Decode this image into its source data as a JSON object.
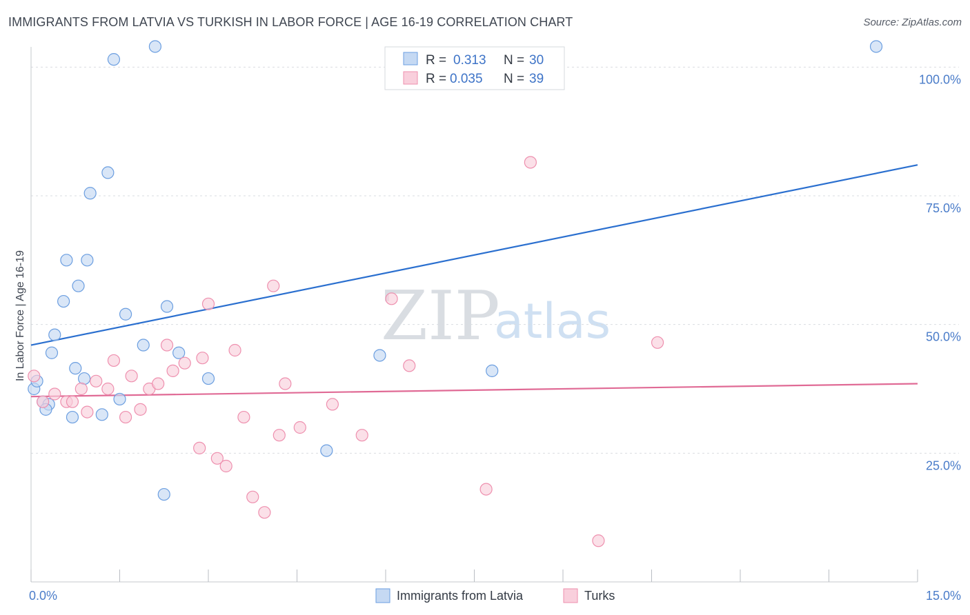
{
  "header": {
    "title": "IMMIGRANTS FROM LATVIA VS TURKISH IN LABOR FORCE | AGE 16-19 CORRELATION CHART",
    "source": "Source: ZipAtlas.com"
  },
  "watermark": {
    "zip": "ZIP",
    "atlas": "atlas"
  },
  "legend": {
    "rows": [
      {
        "r_label": "R = ",
        "r_value": "0.313",
        "n_label": "N = ",
        "n_value": "30"
      },
      {
        "r_label": "R = ",
        "r_value": "0.035",
        "n_label": "N = ",
        "n_value": "39"
      }
    ]
  },
  "chart_data": {
    "type": "scatter",
    "ylabel": "In Labor Force | Age 16-19",
    "xlim": [
      0,
      15
    ],
    "ylim": [
      0,
      105
    ],
    "x_ticks": [
      0,
      1.5,
      3,
      4.5,
      6,
      7.5,
      9,
      10.5,
      12,
      13.5,
      15
    ],
    "x_tick_labels": [
      {
        "value": 0,
        "label": "0.0%"
      },
      {
        "value": 15,
        "label": "15.0%"
      }
    ],
    "y_tick_labels": [
      {
        "value": 100,
        "label": "100.0%"
      },
      {
        "value": 75,
        "label": "75.0%"
      },
      {
        "value": 50,
        "label": "50.0%"
      },
      {
        "value": 25,
        "label": "25.0%"
      }
    ],
    "grid": true,
    "legend_position": "top-center",
    "series": [
      {
        "name": "Immigrants from Latvia",
        "color": "#6b9ee0",
        "fill": "#c5d9f3",
        "line_color": "#2a6fcf",
        "trend": {
          "x": [
            0,
            15
          ],
          "y": [
            46,
            81
          ]
        },
        "points": [
          [
            0.05,
            37.5
          ],
          [
            0.1,
            39
          ],
          [
            0.2,
            35
          ],
          [
            0.3,
            34.5
          ],
          [
            0.25,
            33.5
          ],
          [
            0.35,
            44.5
          ],
          [
            0.4,
            48
          ],
          [
            0.55,
            54.5
          ],
          [
            0.6,
            62.5
          ],
          [
            0.7,
            32
          ],
          [
            0.75,
            41.5
          ],
          [
            0.8,
            57.5
          ],
          [
            0.9,
            39.5
          ],
          [
            0.95,
            62.5
          ],
          [
            1.0,
            75.5
          ],
          [
            1.2,
            32.5
          ],
          [
            1.3,
            79.5
          ],
          [
            1.4,
            101.5
          ],
          [
            1.5,
            35.5
          ],
          [
            1.6,
            52
          ],
          [
            1.9,
            46
          ],
          [
            2.1,
            104
          ],
          [
            2.25,
            17
          ],
          [
            2.3,
            53.5
          ],
          [
            2.5,
            44.5
          ],
          [
            3.0,
            39.5
          ],
          [
            5.0,
            25.5
          ],
          [
            5.9,
            44
          ],
          [
            7.8,
            41
          ],
          [
            14.3,
            104
          ]
        ]
      },
      {
        "name": "Turks",
        "color": "#ee8fae",
        "fill": "#f9cfdc",
        "line_color": "#e06a95",
        "trend": {
          "x": [
            0,
            15
          ],
          "y": [
            36,
            38.5
          ]
        },
        "points": [
          [
            0.05,
            40
          ],
          [
            0.2,
            35
          ],
          [
            0.4,
            36.5
          ],
          [
            0.6,
            35
          ],
          [
            0.7,
            35
          ],
          [
            0.85,
            37.5
          ],
          [
            0.95,
            33
          ],
          [
            1.1,
            39
          ],
          [
            1.3,
            37.5
          ],
          [
            1.4,
            43
          ],
          [
            1.6,
            32
          ],
          [
            1.7,
            40
          ],
          [
            1.85,
            33.5
          ],
          [
            2.0,
            37.5
          ],
          [
            2.15,
            38.5
          ],
          [
            2.3,
            46
          ],
          [
            2.4,
            41
          ],
          [
            2.6,
            42.5
          ],
          [
            2.85,
            26
          ],
          [
            2.9,
            43.5
          ],
          [
            3.0,
            54
          ],
          [
            3.15,
            24
          ],
          [
            3.3,
            22.5
          ],
          [
            3.45,
            45
          ],
          [
            3.6,
            32
          ],
          [
            3.75,
            16.5
          ],
          [
            3.95,
            13.5
          ],
          [
            4.1,
            57.5
          ],
          [
            4.2,
            28.5
          ],
          [
            4.3,
            38.5
          ],
          [
            4.55,
            30
          ],
          [
            5.1,
            34.5
          ],
          [
            5.6,
            28.5
          ],
          [
            6.1,
            55
          ],
          [
            6.4,
            42
          ],
          [
            7.7,
            18
          ],
          [
            8.45,
            81.5
          ],
          [
            9.6,
            8
          ],
          [
            10.6,
            46.5
          ]
        ]
      }
    ]
  }
}
